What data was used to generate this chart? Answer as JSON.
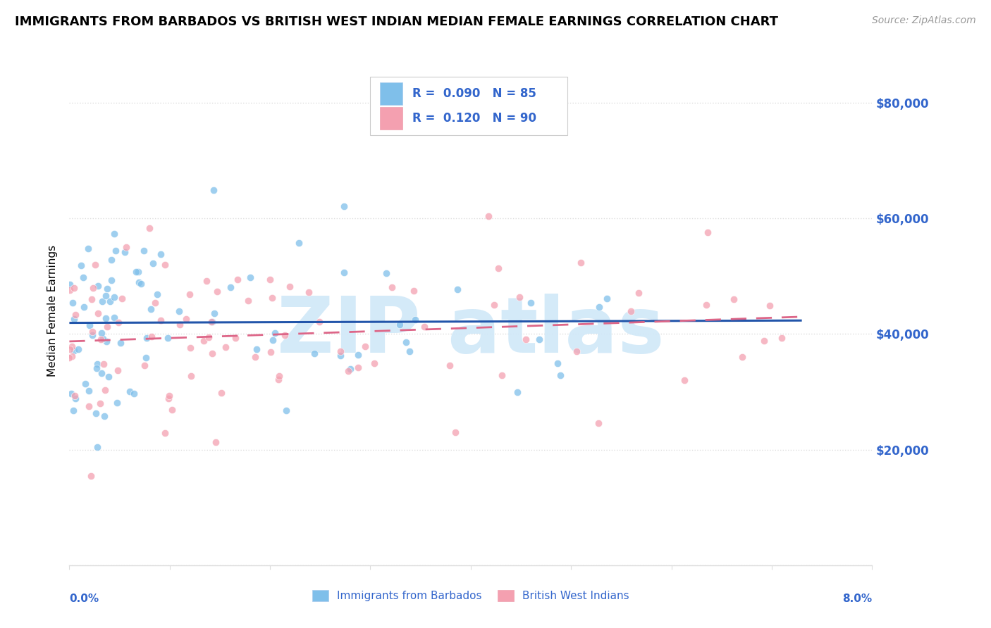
{
  "title": "IMMIGRANTS FROM BARBADOS VS BRITISH WEST INDIAN MEDIAN FEMALE EARNINGS CORRELATION CHART",
  "source": "Source: ZipAtlas.com",
  "ylabel": "Median Female Earnings",
  "xlim": [
    0.0,
    8.0
  ],
  "ylim": [
    0,
    88000
  ],
  "yticks": [
    0,
    20000,
    40000,
    60000,
    80000
  ],
  "series1_color": "#7fbfea",
  "series2_color": "#f4a0b0",
  "series1_label": "Immigrants from Barbados",
  "series2_label": "British West Indians",
  "series1_R": 0.09,
  "series1_N": 85,
  "series2_R": 0.12,
  "series2_N": 90,
  "trend1_color": "#2255aa",
  "trend2_color": "#dd6688",
  "watermark_color": "#d0e8f8",
  "title_fontsize": 13,
  "label_fontsize": 11,
  "grid_color": "#dddddd",
  "right_label_color": "#3366cc"
}
